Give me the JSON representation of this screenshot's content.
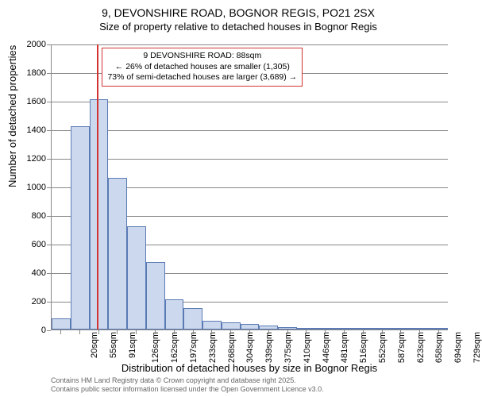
{
  "title": {
    "main": "9, DEVONSHIRE ROAD, BOGNOR REGIS, PO21 2SX",
    "sub": "Size of property relative to detached houses in Bognor Regis"
  },
  "chart": {
    "type": "histogram",
    "ylabel": "Number of detached properties",
    "xlabel": "Distribution of detached houses by size in Bognor Regis",
    "ylim": [
      0,
      2000
    ],
    "ytick_step": 200,
    "yticks": [
      0,
      200,
      400,
      600,
      800,
      1000,
      1200,
      1400,
      1600,
      1800,
      2000
    ],
    "xticks": [
      "20sqm",
      "55sqm",
      "91sqm",
      "126sqm",
      "162sqm",
      "197sqm",
      "233sqm",
      "268sqm",
      "304sqm",
      "339sqm",
      "375sqm",
      "410sqm",
      "446sqm",
      "481sqm",
      "516sqm",
      "552sqm",
      "587sqm",
      "623sqm",
      "658sqm",
      "694sqm",
      "729sqm"
    ],
    "values": [
      80,
      1420,
      1610,
      1060,
      720,
      470,
      210,
      150,
      60,
      50,
      40,
      30,
      15,
      10,
      8,
      6,
      4,
      4,
      3,
      3,
      2
    ],
    "bar_fill": "#ccd8ee",
    "bar_border": "#5b7bb5",
    "grid_color": "#888888",
    "background_color": "#ffffff",
    "label_fontsize": 13,
    "tick_fontsize": 11,
    "title_fontsize": 14
  },
  "marker": {
    "position_sqm": 88,
    "color": "#d23232",
    "box_lines": [
      "9 DEVONSHIRE ROAD: 88sqm",
      "← 26% of detached houses are smaller (1,305)",
      "73% of semi-detached houses are larger (3,689) →"
    ]
  },
  "footer": {
    "line1": "Contains HM Land Registry data © Crown copyright and database right 2025.",
    "line2": "Contains public sector information licensed under the Open Government Licence v3.0."
  }
}
